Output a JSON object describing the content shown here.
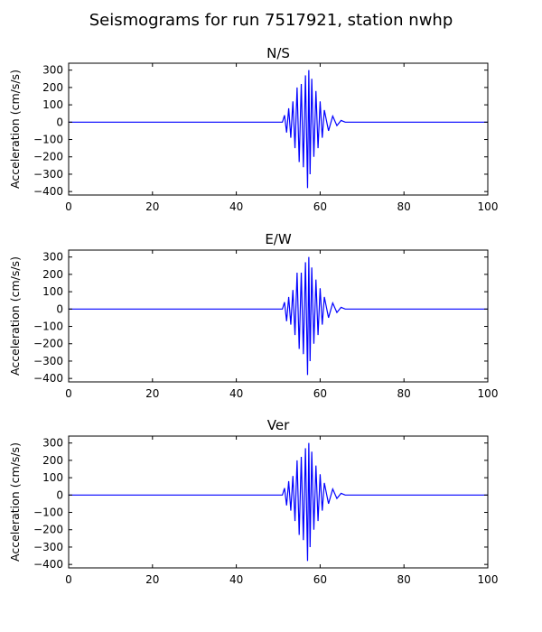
{
  "figure": {
    "title": "Seismograms for run 7517921, station nwhp"
  },
  "colors": {
    "trace": "#0000ff",
    "axes": "#000000",
    "background": "#ffffff"
  },
  "chart_data": [
    {
      "type": "line",
      "title": "N/S",
      "xlabel": "",
      "ylabel": "Acceleration (cm/s/s)",
      "xlim": [
        0,
        100
      ],
      "ylim": [
        -420,
        340
      ],
      "xticks": [
        0,
        20,
        40,
        60,
        80,
        100
      ],
      "yticks": [
        -400,
        -300,
        -200,
        -100,
        0,
        100,
        200,
        300
      ],
      "grid": false,
      "series": [
        {
          "x": [
            0,
            51,
            51.5,
            52,
            52.5,
            53,
            53.5,
            54,
            54.5,
            55,
            55.5,
            56,
            56.5,
            57,
            57.3,
            57.6,
            58,
            58.5,
            59,
            59.5,
            60,
            60.5,
            61,
            62,
            63,
            64,
            65,
            66,
            100
          ],
          "y": [
            0,
            0,
            40,
            -60,
            80,
            -90,
            120,
            -150,
            200,
            -230,
            220,
            -260,
            270,
            -380,
            300,
            -300,
            250,
            -200,
            180,
            -150,
            120,
            -90,
            70,
            -50,
            35,
            -20,
            10,
            0,
            0
          ]
        }
      ]
    },
    {
      "type": "line",
      "title": "E/W",
      "xlabel": "",
      "ylabel": "Acceleration (cm/s/s)",
      "xlim": [
        0,
        100
      ],
      "ylim": [
        -420,
        340
      ],
      "xticks": [
        0,
        20,
        40,
        60,
        80,
        100
      ],
      "yticks": [
        -400,
        -300,
        -200,
        -100,
        0,
        100,
        200,
        300
      ],
      "grid": false,
      "series": [
        {
          "x": [
            0,
            51,
            51.5,
            52,
            52.5,
            53,
            53.5,
            54,
            54.5,
            55,
            55.5,
            56,
            56.5,
            57,
            57.3,
            57.6,
            58,
            58.5,
            59,
            59.5,
            60,
            60.5,
            61,
            62,
            63,
            64,
            65,
            66,
            100
          ],
          "y": [
            0,
            0,
            40,
            -70,
            70,
            -90,
            110,
            -150,
            210,
            -230,
            210,
            -260,
            270,
            -380,
            300,
            -300,
            240,
            -200,
            170,
            -150,
            120,
            -90,
            70,
            -50,
            35,
            -20,
            10,
            0,
            0
          ]
        }
      ]
    },
    {
      "type": "line",
      "title": "Ver",
      "xlabel": "",
      "ylabel": "Acceleration (cm/s/s)",
      "xlim": [
        0,
        100
      ],
      "ylim": [
        -420,
        340
      ],
      "xticks": [
        0,
        20,
        40,
        60,
        80,
        100
      ],
      "yticks": [
        -400,
        -300,
        -200,
        -100,
        0,
        100,
        200,
        300
      ],
      "grid": false,
      "series": [
        {
          "x": [
            0,
            51,
            51.5,
            52,
            52.5,
            53,
            53.5,
            54,
            54.5,
            55,
            55.5,
            56,
            56.5,
            57,
            57.3,
            57.6,
            58,
            58.5,
            59,
            59.5,
            60,
            60.5,
            61,
            62,
            63,
            64,
            65,
            66,
            100
          ],
          "y": [
            0,
            0,
            40,
            -60,
            80,
            -90,
            110,
            -150,
            200,
            -230,
            220,
            -260,
            270,
            -380,
            300,
            -300,
            250,
            -200,
            170,
            -150,
            120,
            -90,
            70,
            -50,
            35,
            -20,
            10,
            0,
            0
          ]
        }
      ]
    }
  ]
}
